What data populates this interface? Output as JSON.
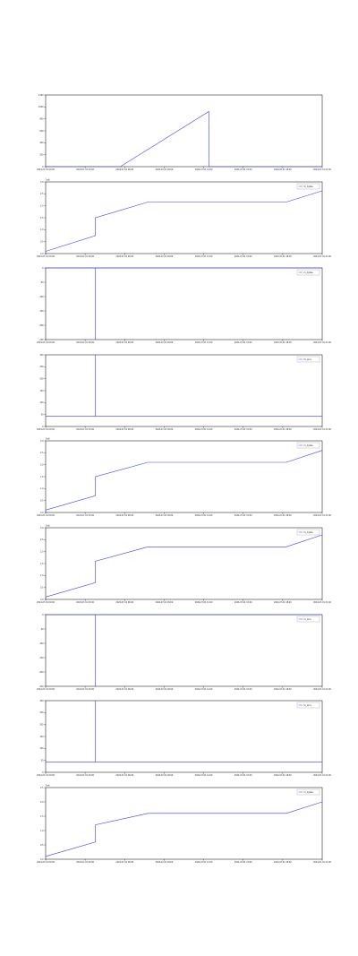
{
  "colors": {
    "series": "#3b3bff",
    "axis": "#000000",
    "background": "#ffffff"
  },
  "x_tick_labels": [
    "2024-07-01 00:00",
    "2024-07-01 03:00",
    "2024-07-01 06:00",
    "2024-07-01 09:00",
    "2024-07-01 12:00",
    "2024-07-01 15:00",
    "2024-07-01 18:00",
    "2024-07-01 21:00"
  ],
  "chart_data": [
    {
      "type": "line",
      "y_offset": "",
      "legend": "",
      "ylim": [
        0,
        1300
      ],
      "y_ticks": [
        "0",
        "200",
        "400",
        "600",
        "800",
        "1000",
        "1200"
      ],
      "series": [
        {
          "name": "",
          "x": [
            0,
            0.27,
            0.59,
            0.59,
            1.0
          ],
          "y": [
            0,
            0,
            1000,
            0,
            0
          ]
        }
      ]
    },
    {
      "type": "line",
      "y_offset": "1e6",
      "legend": "tx_bytes",
      "ylim": [
        0,
        3.2
      ],
      "y_ticks": [
        "0.0",
        "0.5",
        "1.0",
        "1.5",
        "2.0",
        "2.5",
        "3.0"
      ],
      "series": [
        {
          "name": "tx_bytes",
          "x": [
            0,
            0.18,
            0.18,
            0.37,
            0.87,
            1.0
          ],
          "y": [
            0.1,
            0.8,
            1.6,
            2.3,
            2.3,
            2.8
          ]
        }
      ]
    },
    {
      "type": "line",
      "y_offset": "",
      "legend": "rx_bytes",
      "ylim": [
        -250,
        0
      ],
      "y_ticks": [
        "0",
        "-50",
        "-100",
        "-150",
        "-200",
        "-250"
      ],
      "series": [
        {
          "name": "rx_bytes",
          "x": [
            0,
            0.18,
            0.18,
            0.18,
            1.0
          ],
          "y": [
            0,
            0,
            -250,
            0,
            0
          ]
        }
      ]
    },
    {
      "type": "line",
      "y_offset": "",
      "legend": "tx_errs",
      "ylim": [
        -50,
        300
      ],
      "y_ticks": [
        "0",
        "50",
        "100",
        "150",
        "200",
        "250",
        "300"
      ],
      "series": [
        {
          "name": "tx_errs",
          "x": [
            0,
            0.18,
            0.18,
            0.18,
            1.0
          ],
          "y": [
            0,
            0,
            300,
            0,
            0
          ]
        }
      ]
    },
    {
      "type": "line",
      "y_offset": "1e6",
      "legend": "rx_bytes",
      "ylim": [
        0,
        3.0
      ],
      "y_ticks": [
        "0.0",
        "0.5",
        "1.0",
        "1.5",
        "2.0",
        "2.5",
        "3.0"
      ],
      "series": [
        {
          "name": "rx_bytes",
          "x": [
            0,
            0.18,
            0.18,
            0.37,
            0.87,
            1.0
          ],
          "y": [
            0.1,
            0.7,
            1.5,
            2.1,
            2.1,
            2.6
          ]
        }
      ]
    },
    {
      "type": "line",
      "y_offset": "1e6",
      "legend": "tx_bytes",
      "ylim": [
        0,
        3.0
      ],
      "y_ticks": [
        "0.0",
        "0.5",
        "1.0",
        "1.5",
        "2.0",
        "2.5",
        "3.0"
      ],
      "series": [
        {
          "name": "tx_bytes",
          "x": [
            0,
            0.18,
            0.18,
            0.37,
            0.87,
            1.0
          ],
          "y": [
            0.1,
            0.7,
            1.6,
            2.2,
            2.2,
            2.7
          ]
        }
      ]
    },
    {
      "type": "line",
      "y_offset": "",
      "legend": "rx_errs",
      "ylim": [
        -250,
        0
      ],
      "y_ticks": [
        "0",
        "-50",
        "-100",
        "-150",
        "-200",
        "-250"
      ],
      "series": [
        {
          "name": "rx_errs",
          "x": [
            0,
            0.18,
            0.18,
            0.18,
            1.0
          ],
          "y": [
            0,
            0,
            -250,
            0,
            0
          ]
        }
      ]
    },
    {
      "type": "line",
      "y_offset": "",
      "legend": "tx_errs",
      "ylim": [
        -50,
        300
      ],
      "y_ticks": [
        "0",
        "50",
        "100",
        "150",
        "200",
        "250",
        "300"
      ],
      "series": [
        {
          "name": "tx_errs",
          "x": [
            0,
            0.18,
            0.18,
            0.18,
            1.0
          ],
          "y": [
            0,
            0,
            300,
            0,
            0
          ]
        }
      ]
    },
    {
      "type": "line",
      "y_offset": "1e6",
      "legend": "rx_bytes",
      "ylim": [
        0,
        2.5
      ],
      "y_ticks": [
        "0.0",
        "0.5",
        "1.0",
        "1.5",
        "2.0",
        "2.5"
      ],
      "series": [
        {
          "name": "rx_bytes",
          "x": [
            0,
            0.18,
            0.18,
            0.37,
            0.87,
            1.0
          ],
          "y": [
            0.1,
            0.6,
            1.2,
            1.6,
            1.6,
            2.0
          ]
        }
      ]
    }
  ]
}
